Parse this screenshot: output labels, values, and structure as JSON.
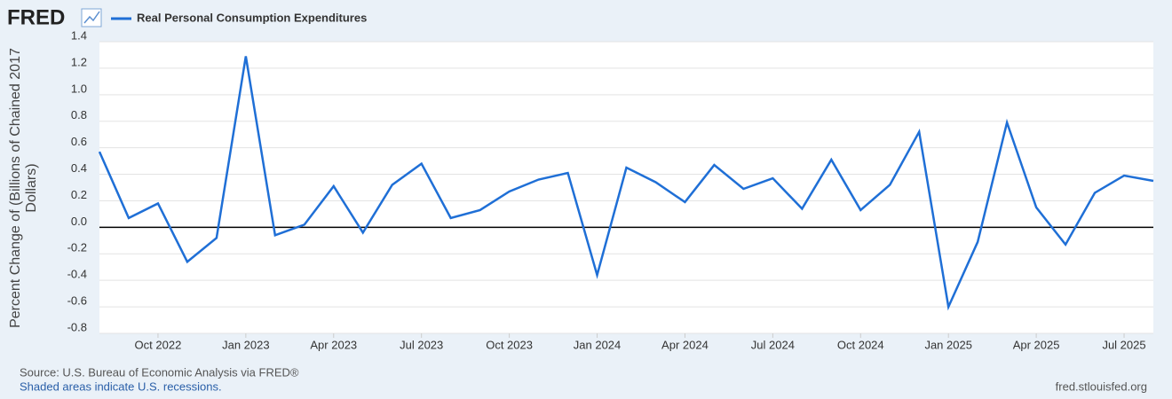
{
  "chart_data": {
    "type": "line",
    "logo": "FRED",
    "y_label": "Percent Change of (Billions of Chained 2017 Dollars)",
    "source": "Source: U.S. Bureau of Economic Analysis via FRED®",
    "note": "Shaded areas indicate U.S. recessions.",
    "url": "fred.stlouisfed.org",
    "categories": [
      null,
      null,
      "Oct 2022",
      null,
      null,
      "Jan 2023",
      null,
      null,
      "Apr 2023",
      null,
      null,
      "Jul 2023",
      null,
      null,
      "Oct 2023",
      null,
      null,
      "Jan 2024",
      null,
      null,
      "Apr 2024",
      null,
      null,
      "Jul 2024",
      null,
      null,
      "Oct 2024",
      null,
      null,
      "Jan 2025",
      null,
      null,
      "Apr 2025",
      null,
      null,
      "Jul 2025",
      null
    ],
    "series": [
      {
        "name": "Real Personal Consumption Expenditures",
        "color": "#1f6fd6",
        "values": [
          0.57,
          0.07,
          0.18,
          -0.26,
          -0.08,
          1.29,
          -0.06,
          0.02,
          0.31,
          -0.04,
          0.32,
          0.48,
          0.07,
          0.13,
          0.27,
          0.36,
          0.41,
          -0.36,
          0.45,
          0.34,
          0.19,
          0.47,
          0.29,
          0.37,
          0.14,
          0.51,
          0.13,
          0.32,
          0.72,
          -0.6,
          -0.11,
          0.79,
          0.15,
          -0.13,
          0.26,
          0.39,
          0.35
        ]
      }
    ],
    "ylim": [
      -0.8,
      1.4
    ],
    "yticks": [
      -0.8,
      -0.6,
      -0.4,
      -0.2,
      {
        "value": 0,
        "label": "0.0"
      },
      0.2,
      0.4,
      0.6,
      0.8,
      {
        "value": 1,
        "label": "1.0"
      },
      1.2,
      1.4
    ],
    "grid": true
  }
}
